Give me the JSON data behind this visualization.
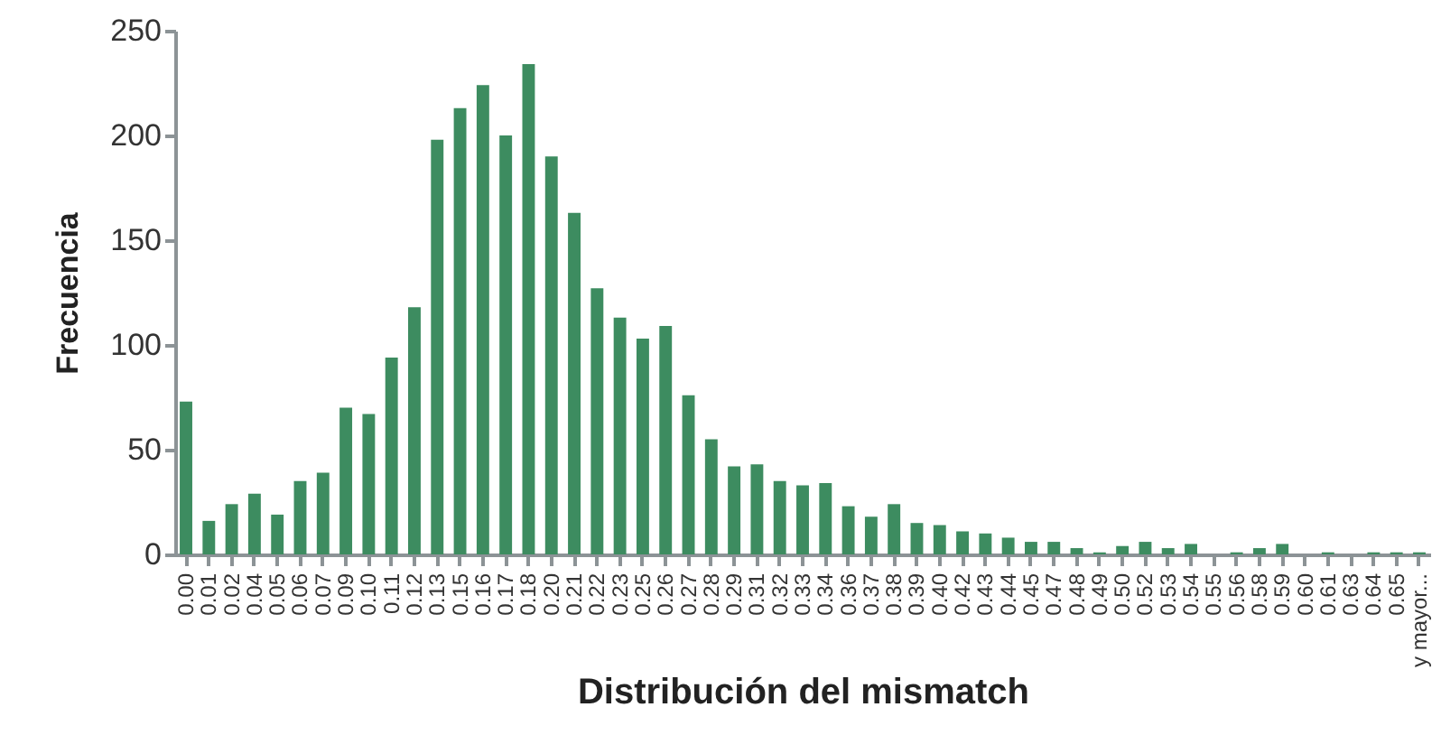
{
  "chart_data": {
    "type": "bar",
    "xlabel": "Distribución del mismatch",
    "ylabel": "Frecuencia",
    "categories": [
      "0.00",
      "0.01",
      "0.02",
      "0.04",
      "0.05",
      "0.06",
      "0.07",
      "0.09",
      "0.10",
      "0.11",
      "0.12",
      "0.13",
      "0.15",
      "0.16",
      "0.17",
      "0.18",
      "0.20",
      "0.21",
      "0.22",
      "0.23",
      "0.25",
      "0.26",
      "0.27",
      "0.28",
      "0.29",
      "0.31",
      "0.32",
      "0.33",
      "0.34",
      "0.36",
      "0.37",
      "0.38",
      "0.39",
      "0.40",
      "0.42",
      "0.43",
      "0.44",
      "0.45",
      "0.47",
      "0.48",
      "0.49",
      "0.50",
      "0.52",
      "0.53",
      "0.54",
      "0.55",
      "0.56",
      "0.58",
      "0.59",
      "0.60",
      "0.61",
      "0.63",
      "0.64",
      "0.65",
      "y mayor..."
    ],
    "values": [
      73,
      16,
      24,
      29,
      19,
      35,
      39,
      70,
      67,
      94,
      118,
      198,
      213,
      224,
      200,
      234,
      190,
      163,
      127,
      113,
      103,
      109,
      76,
      55,
      42,
      43,
      35,
      33,
      34,
      23,
      18,
      24,
      15,
      14,
      11,
      10,
      8,
      6,
      6,
      3,
      1,
      4,
      6,
      3,
      5,
      0,
      1,
      3,
      5,
      0,
      1,
      0,
      1,
      1,
      1
    ],
    "color": "#3d8c60",
    "ylim": [
      0,
      250
    ],
    "yticks": [
      0,
      50,
      100,
      150,
      200,
      250
    ],
    "grid": false
  }
}
